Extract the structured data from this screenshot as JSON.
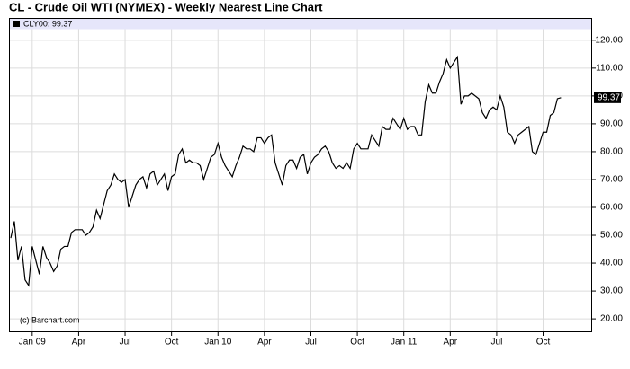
{
  "chart_data": {
    "type": "line",
    "title": "CL - Crude Oil WTI (NYMEX) - Weekly Nearest Line Chart",
    "watermark": "(c) Barchart.com",
    "last_price_label": "99.37",
    "categories": [
      null,
      null,
      null,
      null,
      null,
      null,
      "Jan 09",
      null,
      null,
      null,
      null,
      null,
      null,
      null,
      null,
      null,
      null,
      null,
      null,
      "Apr",
      null,
      null,
      null,
      null,
      null,
      null,
      null,
      null,
      null,
      null,
      null,
      null,
      "Jul",
      null,
      null,
      null,
      null,
      null,
      null,
      null,
      null,
      null,
      null,
      null,
      null,
      "Oct",
      null,
      null,
      null,
      null,
      null,
      null,
      null,
      null,
      null,
      null,
      null,
      null,
      "Jan 10",
      null,
      null,
      null,
      null,
      null,
      null,
      null,
      null,
      null,
      null,
      null,
      null,
      "Apr",
      null,
      null,
      null,
      null,
      null,
      null,
      null,
      null,
      null,
      null,
      null,
      null,
      "Jul",
      null,
      null,
      null,
      null,
      null,
      null,
      null,
      null,
      null,
      null,
      null,
      null,
      "Oct",
      null,
      null,
      null,
      null,
      null,
      null,
      null,
      null,
      null,
      null,
      null,
      null,
      "Jan 11",
      null,
      null,
      null,
      null,
      null,
      null,
      null,
      null,
      null,
      null,
      null,
      null,
      "Apr",
      null,
      null,
      null,
      null,
      null,
      null,
      null,
      null,
      null,
      null,
      null,
      null,
      "Jul",
      null,
      null,
      null,
      null,
      null,
      null,
      null,
      null,
      null,
      null,
      null,
      null,
      "Oct",
      null,
      null,
      null,
      null,
      null
    ],
    "series": [
      {
        "name": "CLY00: 99.37",
        "color": "#000000",
        "values": [
          49,
          55,
          41,
          46,
          34,
          32,
          46,
          41,
          36,
          46,
          42,
          40,
          37,
          39,
          45,
          46,
          46,
          51,
          52,
          52,
          52,
          50,
          51,
          53,
          59,
          56,
          61,
          66,
          68,
          72,
          70,
          69,
          70,
          60,
          64,
          68,
          70,
          71,
          67,
          72,
          73,
          68,
          70,
          72,
          66,
          71,
          72,
          79,
          81,
          76,
          77,
          76,
          76,
          75,
          70,
          74,
          78,
          79,
          83,
          78,
          75,
          73,
          71,
          75,
          78,
          82,
          81,
          81,
          80,
          85,
          85,
          83,
          85,
          86,
          76,
          72,
          68,
          75,
          77,
          77,
          74,
          78,
          79,
          72,
          76,
          78,
          79,
          81,
          82,
          80,
          76,
          74,
          75,
          74,
          76,
          74,
          81,
          83,
          81,
          81,
          81,
          86,
          84,
          82,
          89,
          88,
          88,
          92,
          90,
          88,
          92,
          88,
          89,
          89,
          86,
          86,
          98,
          104,
          101,
          101,
          105,
          108,
          113,
          110,
          112,
          114,
          97,
          100,
          100,
          101,
          100,
          99,
          94,
          92,
          95,
          96,
          95,
          100,
          96,
          87,
          86,
          83,
          86,
          87,
          88,
          89,
          80,
          79,
          83,
          87,
          87,
          93,
          94,
          99,
          99.37
        ]
      }
    ],
    "ylim": [
      15.2,
      128
    ],
    "yticks": [
      {
        "value": 20,
        "label": "20.00"
      },
      {
        "value": 30,
        "label": "30.00"
      },
      {
        "value": 40,
        "label": "40.00"
      },
      {
        "value": 50,
        "label": "50.00"
      },
      {
        "value": 60,
        "label": "60.00"
      },
      {
        "value": 70,
        "label": "70.00"
      },
      {
        "value": 80,
        "label": "80.00"
      },
      {
        "value": 90,
        "label": "90.00"
      },
      {
        "value": 100,
        "label": "100.00"
      },
      {
        "value": 110,
        "label": "110.00"
      },
      {
        "value": 120,
        "label": "120.00"
      }
    ],
    "grid": true
  }
}
